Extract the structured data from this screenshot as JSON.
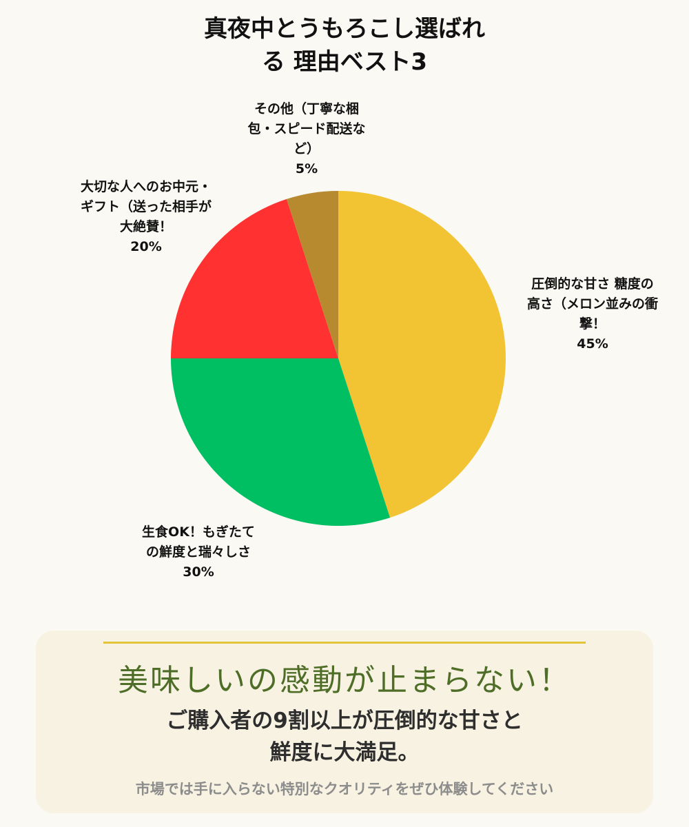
{
  "header": {
    "title_line1": "真夜中とうもろこし選ばれ",
    "title_line2": "る 理由ベスト3"
  },
  "chart_data": {
    "type": "pie",
    "title": "真夜中とうもろこし選ばれる 理由ベスト3",
    "slices": [
      {
        "lines": [
          "圧倒的な甘さ 糖度の",
          "高さ（メロン並みの衝",
          "撃！"
        ],
        "value": 45,
        "display": "45%",
        "color": "#f2c433"
      },
      {
        "lines": [
          "生食OK！もぎたて",
          "の鮮度と瑞々しさ"
        ],
        "value": 30,
        "display": "30%",
        "color": "#00bf63"
      },
      {
        "lines": [
          "大切な人へのお中元・",
          "ギフト（送った相手が",
          "大絶賛！"
        ],
        "value": 20,
        "display": "20%",
        "color": "#ff3131"
      },
      {
        "lines": [
          "その他（丁寧な梱",
          "包・スピード配送な",
          "ど）"
        ],
        "value": 5,
        "display": "5%",
        "color": "#b88a30"
      }
    ]
  },
  "card": {
    "tagline": "美味しいの感動が止まらない！",
    "message_line1": "ご購入者の9割以上が圧倒的な甘さと",
    "message_line2": "鮮度に大満足。",
    "footnote": "市場では手に入らない特別なクオリティをぜひ体験してください"
  }
}
